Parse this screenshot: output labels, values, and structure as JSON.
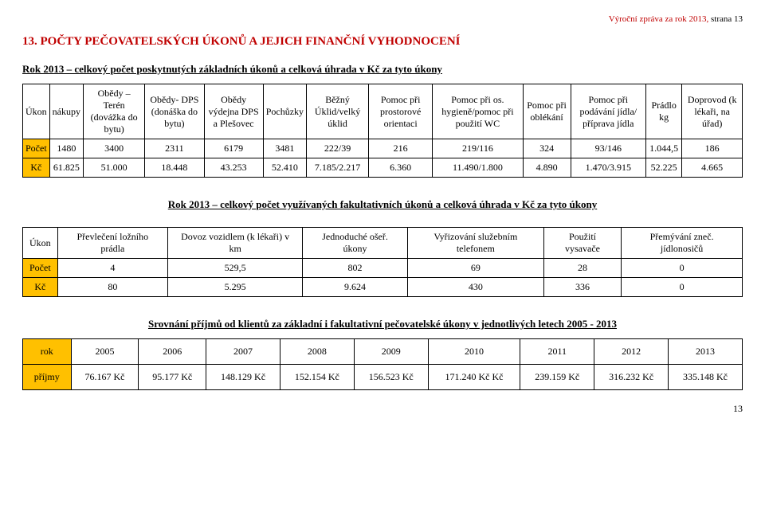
{
  "header": {
    "left": "Výroční zpráva za rok 2013,",
    "right": "strana 13"
  },
  "section_title": "13. POČTY PEČOVATELSKÝCH ÚKONŮ A JEJICH FINANČNÍ VYHODNOCENÍ",
  "t1": {
    "caption": "Rok 2013 – celkový počet poskytnutých základních úkonů a celková úhrada v Kč za tyto úkony",
    "headers": [
      "Úkon",
      "nákupy",
      "Obědy – Terén (dovážka do bytu)",
      "Obědy- DPS (donáška do bytu)",
      "Obědy výdejna DPS a Plešovec",
      "Pochůzky",
      "Běžný Úklid/velký úklid",
      "Pomoc při prostorové orientaci",
      "Pomoc při os. hygieně/pomoc při použití WC",
      "Pomoc při oblékání",
      "Pomoc při podávání jídla/ příprava jídla",
      "Prádlo kg",
      "Doprovod (k lékaři, na úřad)"
    ],
    "row_pocet_label": "Počet",
    "row_pocet": [
      "1480",
      "3400",
      "2311",
      "6179",
      "3481",
      "222/39",
      "216",
      "219/116",
      "324",
      "93/146",
      "1.044,5",
      "186"
    ],
    "row_kc_label": "Kč",
    "row_kc": [
      "61.825",
      "51.000",
      "18.448",
      "43.253",
      "52.410",
      "7.185/2.217",
      "6.360",
      "11.490/1.800",
      "4.890",
      "1.470/3.915",
      "52.225",
      "4.665"
    ]
  },
  "t2": {
    "caption": "Rok 2013 – celkový počet využívaných fakultativních úkonů a celková úhrada v Kč za tyto úkony",
    "headers": [
      "Úkon",
      "Převlečení ložního prádla",
      "Dovoz vozidlem (k lékaři) v km",
      "Jednoduché ošeř. úkony",
      "Vyřizování služebním telefonem",
      "Použití vysavače",
      "Přemývání zneč. jídlonosičů"
    ],
    "row_pocet_label": "Počet",
    "row_pocet": [
      "4",
      "529,5",
      "802",
      "69",
      "28",
      "0"
    ],
    "row_kc_label": "Kč",
    "row_kc": [
      "80",
      "5.295",
      "9.624",
      "430",
      "336",
      "0"
    ]
  },
  "t3": {
    "caption": "Srovnání příjmů od klientů za základní i fakultativní pečovatelské úkony v jednotlivých letech 2005 - 2013",
    "header_label": "rok",
    "years": [
      "2005",
      "2006",
      "2007",
      "2008",
      "2009",
      "2010",
      "2011",
      "2012",
      "2013"
    ],
    "row_label": "příjmy",
    "values": [
      "76.167 Kč",
      "95.177 Kč",
      "148.129 Kč",
      "152.154 Kč",
      "156.523 Kč",
      "171.240 Kč Kč",
      "239.159 Kč",
      "316.232 Kč",
      "335.148 Kč"
    ]
  },
  "footer_page": "13",
  "colors": {
    "accent": "#c00000",
    "highlight": "#ffc000"
  }
}
